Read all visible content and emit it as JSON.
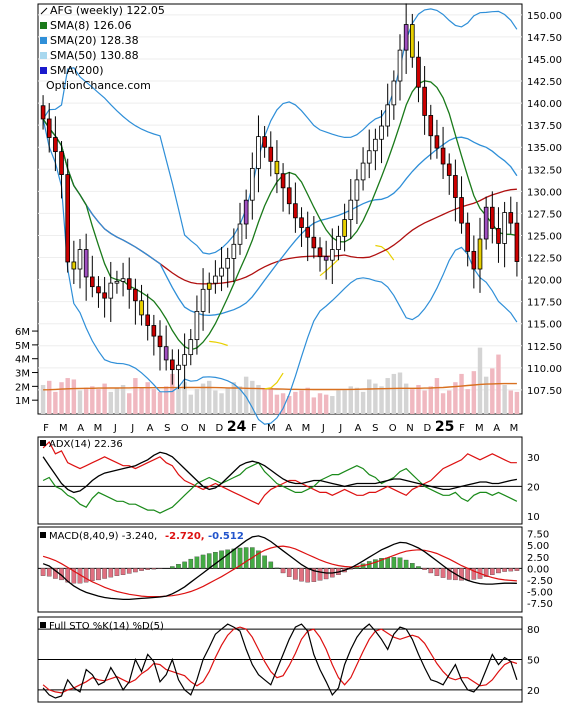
{
  "chart_data": {
    "type": "stock-chart",
    "price_panel": {
      "legend": [
        {
          "label": "AFG (weekly) 122.05",
          "color": "#000000",
          "marker": "line-thin"
        },
        {
          "label": "SMA(8) 126.06",
          "color": "#1a7a1a",
          "marker": "box"
        },
        {
          "label": "SMA(20) 128.38",
          "color": "#2f8fd8",
          "marker": "box"
        },
        {
          "label": "SMA(50) 130.88",
          "color": "#a8d8ef",
          "marker": "box"
        },
        {
          "label": "SMA(200)",
          "color": "#1a1acc",
          "marker": "box"
        }
      ],
      "watermark": "OptionChance.com",
      "y_ticks": [
        "150.00",
        "147.50",
        "145.00",
        "142.50",
        "140.00",
        "137.50",
        "135.00",
        "132.50",
        "130.00",
        "127.50",
        "125.00",
        "122.50",
        "120.00",
        "117.50",
        "115.00",
        "112.50",
        "110.00",
        "107.50"
      ],
      "y_range": [
        105.0,
        151.0
      ],
      "colors": {
        "up_candle": "#ffffff",
        "down_candle": "#cc0000",
        "inside_candle": "#e8d000",
        "purple_candle": "#a050c0",
        "sma8": "#1a7a1a",
        "sma20": "#2f8fd8",
        "sma50_line": "#b01010",
        "bollinger": "#2f8fd8",
        "yellow_band": "#e8d000"
      },
      "closes": [
        138.2,
        136.1,
        134.5,
        131.9,
        122.0,
        121.2,
        123.4,
        120.3,
        119.2,
        118.5,
        117.9,
        119.6,
        119.8,
        120.1,
        118.9,
        117.6,
        116.0,
        114.8,
        113.6,
        112.4,
        110.9,
        109.8,
        110.3,
        111.5,
        113.2,
        116.4,
        118.9,
        119.6,
        120.4,
        121.3,
        122.4,
        124.0,
        126.3,
        129.0,
        132.6,
        136.2,
        135.0,
        133.4,
        132.0,
        130.4,
        128.6,
        127.0,
        125.9,
        124.8,
        123.6,
        122.6,
        122.2,
        123.4,
        124.9,
        126.8,
        129.0,
        131.3,
        133.2,
        134.6,
        135.9,
        137.4,
        139.8,
        142.5,
        146.0,
        148.9,
        145.2,
        141.8,
        138.6,
        136.3,
        134.9,
        133.1,
        131.8,
        129.3,
        126.4,
        123.2,
        121.2,
        124.6,
        128.2,
        125.8,
        124.1,
        127.6,
        126.4,
        122.05
      ]
    },
    "volume_panel": {
      "y_ticks": [
        "6M",
        "5M",
        "4M",
        "3M",
        "2M",
        "1M"
      ],
      "y_range": [
        0,
        6.8
      ],
      "colors": {
        "up_bar": "#d4d4d4",
        "down_bar": "#f0b8c0",
        "average": "#d87020"
      },
      "volumes_millions": [
        2.1,
        2.4,
        1.6,
        2.3,
        2.6,
        2.5,
        1.7,
        1.9,
        2.0,
        1.8,
        2.2,
        1.6,
        1.9,
        2.1,
        1.5,
        2.6,
        1.9,
        2.3,
        1.8,
        1.6,
        2.0,
        2.9,
        1.9,
        2.3,
        1.4,
        1.8,
        2.2,
        2.4,
        1.7,
        1.5,
        1.9,
        2.3,
        2.0,
        2.7,
        2.4,
        2.1,
        1.8,
        1.9,
        1.4,
        1.5,
        1.3,
        1.6,
        1.7,
        1.9,
        1.2,
        1.5,
        1.4,
        1.3,
        1.7,
        1.8,
        2.0,
        1.9,
        1.6,
        2.5,
        2.2,
        2.0,
        2.6,
        2.9,
        3.0,
        2.2,
        1.8,
        2.1,
        1.7,
        2.0,
        2.6,
        1.5,
        1.7,
        2.3,
        2.9,
        1.8,
        3.1,
        4.8,
        2.7,
        3.3,
        4.3,
        2.1,
        1.7,
        1.6
      ],
      "average_millions": [
        1.75,
        1.76,
        1.78,
        1.8,
        1.82,
        1.84,
        1.85,
        1.86,
        1.86,
        1.87,
        1.87,
        1.88,
        1.88,
        1.89,
        1.89,
        1.9,
        1.9,
        1.9,
        1.9,
        1.9,
        1.9,
        1.91,
        1.91,
        1.92,
        1.92,
        1.92,
        1.92,
        1.92,
        1.91,
        1.9,
        1.89,
        1.88,
        1.87,
        1.86,
        1.85,
        1.84,
        1.83,
        1.82,
        1.81,
        1.8,
        1.79,
        1.79,
        1.78,
        1.78,
        1.77,
        1.77,
        1.77,
        1.77,
        1.77,
        1.78,
        1.78,
        1.79,
        1.8,
        1.81,
        1.82,
        1.83,
        1.84,
        1.85,
        1.86,
        1.86,
        1.86,
        1.86,
        1.87,
        1.88,
        1.9,
        1.92,
        1.95,
        1.98,
        2.02,
        2.06,
        2.1,
        2.14,
        2.16,
        2.18,
        2.19,
        2.2,
        2.2,
        2.2
      ]
    },
    "x_labels": [
      {
        "text": "F",
        "bold": false
      },
      {
        "text": "M",
        "bold": false
      },
      {
        "text": "A",
        "bold": false
      },
      {
        "text": "M",
        "bold": false
      },
      {
        "text": "J",
        "bold": false
      },
      {
        "text": "J",
        "bold": false
      },
      {
        "text": "A",
        "bold": false
      },
      {
        "text": "S",
        "bold": false
      },
      {
        "text": "O",
        "bold": false
      },
      {
        "text": "N",
        "bold": false
      },
      {
        "text": "D",
        "bold": false
      },
      {
        "text": "24",
        "bold": true
      },
      {
        "text": "F",
        "bold": false
      },
      {
        "text": "M",
        "bold": false
      },
      {
        "text": "A",
        "bold": false
      },
      {
        "text": "M",
        "bold": false
      },
      {
        "text": "J",
        "bold": false
      },
      {
        "text": "J",
        "bold": false
      },
      {
        "text": "A",
        "bold": false
      },
      {
        "text": "S",
        "bold": false
      },
      {
        "text": "O",
        "bold": false
      },
      {
        "text": "N",
        "bold": false
      },
      {
        "text": "D",
        "bold": false
      },
      {
        "text": "25",
        "bold": true
      },
      {
        "text": "F",
        "bold": false
      },
      {
        "text": "M",
        "bold": false
      },
      {
        "text": "A",
        "bold": false
      },
      {
        "text": "M",
        "bold": false
      }
    ],
    "adx_panel": {
      "label": "ADX(14) 22.36",
      "y_ticks": [
        "30",
        "20",
        "10"
      ],
      "y_range": [
        8,
        36
      ],
      "colors": {
        "adx": "#000000",
        "plus_di": "#1a8a1a",
        "minus_di": "#dd1111"
      },
      "adx": [
        30,
        27,
        24,
        21,
        19,
        18,
        18.5,
        20,
        22,
        23.5,
        24.5,
        25,
        25.5,
        26,
        26.5,
        27,
        28,
        29,
        30.5,
        31.5,
        31,
        30,
        28,
        26,
        24,
        22,
        20,
        19,
        19.5,
        21,
        23,
        25,
        27,
        28,
        28.5,
        28,
        27,
        25.5,
        24,
        22.5,
        21.5,
        21,
        21,
        21.5,
        22,
        22,
        21.5,
        21,
        20.5,
        20,
        20.5,
        21,
        21,
        21,
        21,
        21.5,
        22,
        22.5,
        22.5,
        22,
        21.5,
        21,
        20.5,
        20,
        19.5,
        19,
        19,
        19.5,
        20,
        20.5,
        21,
        21.5,
        21.5,
        21,
        21,
        21.5,
        22,
        22.36
      ],
      "plus_di": [
        22,
        23,
        20,
        19,
        17,
        16,
        14,
        13,
        16,
        18,
        17,
        16,
        15,
        15,
        14,
        14,
        13,
        12,
        12,
        11,
        12,
        13,
        15,
        17,
        19,
        21,
        22,
        23,
        22,
        21,
        22,
        23,
        24,
        26,
        27,
        28,
        25,
        23,
        21,
        20,
        19,
        18,
        18,
        19,
        20,
        22,
        23,
        24,
        24,
        25,
        26,
        27,
        26,
        24,
        23,
        21,
        22,
        23,
        25,
        26,
        24,
        22,
        20,
        19,
        18,
        17,
        17,
        18,
        16,
        15,
        17,
        18,
        18,
        17,
        18,
        17,
        16,
        15
      ],
      "minus_di": [
        33,
        35,
        31,
        32,
        28,
        27,
        26,
        27,
        28,
        29,
        30,
        29,
        28,
        27,
        27,
        26,
        27,
        28,
        29,
        30,
        28,
        27,
        24,
        22,
        21,
        20,
        19,
        20,
        21,
        20,
        19,
        18,
        17,
        16,
        15,
        14,
        17,
        19,
        20,
        21,
        22,
        22,
        21,
        20,
        19,
        18,
        18,
        17,
        18,
        19,
        18,
        17,
        17,
        18,
        18,
        19,
        20,
        19,
        18,
        17,
        19,
        20,
        21,
        22,
        24,
        26,
        27,
        28,
        29,
        31,
        30,
        29,
        30,
        31,
        30,
        29,
        28,
        28
      ]
    },
    "macd_panel": {
      "label": "MACD(8,40,9) -3.240,",
      "signal_label": "-2.720,",
      "hist_label": "-0.512",
      "y_ticks": [
        "7.50",
        "5.00",
        "2.50",
        "0.00",
        "-2.50",
        "-5.00",
        "-7.50"
      ],
      "y_range": [
        -9.0,
        8.5
      ],
      "colors": {
        "macd": "#000000",
        "signal": "#dd1111",
        "hist_pos": "#44aa44",
        "hist_neg": "#e07080",
        "hist_red_label": "#dd1111",
        "hist_blue_label": "#2255cc"
      },
      "macd": [
        1.0,
        0.5,
        -0.5,
        -1.5,
        -2.8,
        -3.8,
        -4.6,
        -5.2,
        -5.6,
        -6.0,
        -6.3,
        -6.5,
        -6.6,
        -6.7,
        -6.7,
        -6.6,
        -6.5,
        -6.4,
        -6.3,
        -6.2,
        -6.0,
        -5.5,
        -4.8,
        -4.0,
        -3.0,
        -2.0,
        -1.0,
        0.0,
        1.0,
        2.0,
        3.0,
        4.0,
        5.0,
        6.0,
        6.8,
        7.0,
        6.6,
        5.8,
        4.8,
        3.8,
        2.8,
        1.8,
        0.8,
        0.0,
        -0.5,
        -0.8,
        -1.0,
        -1.0,
        -0.8,
        -0.4,
        0.1,
        0.8,
        1.6,
        2.4,
        3.2,
        4.0,
        4.6,
        5.2,
        5.6,
        5.5,
        5.0,
        4.4,
        3.6,
        2.6,
        1.6,
        0.6,
        -0.4,
        -1.2,
        -2.0,
        -2.6,
        -3.0,
        -3.3,
        -3.4,
        -3.4,
        -3.3,
        -3.2,
        -3.2,
        -3.24
      ],
      "signal": [
        2.6,
        2.2,
        1.7,
        1.0,
        0.2,
        -0.6,
        -1.4,
        -2.2,
        -2.9,
        -3.5,
        -4.1,
        -4.6,
        -5.0,
        -5.3,
        -5.6,
        -5.8,
        -6.0,
        -6.1,
        -6.1,
        -6.1,
        -6.0,
        -5.9,
        -5.7,
        -5.4,
        -5.0,
        -4.5,
        -3.9,
        -3.2,
        -2.5,
        -1.8,
        -1.0,
        -0.2,
        0.6,
        1.5,
        2.3,
        3.2,
        3.9,
        4.4,
        4.7,
        4.8,
        4.6,
        4.2,
        3.6,
        3.0,
        2.4,
        1.8,
        1.3,
        0.9,
        0.6,
        0.4,
        0.3,
        0.4,
        0.6,
        0.9,
        1.3,
        1.8,
        2.3,
        2.8,
        3.3,
        3.7,
        3.9,
        4.0,
        3.9,
        3.6,
        3.2,
        2.6,
        2.0,
        1.3,
        0.6,
        0.0,
        -0.6,
        -1.1,
        -1.6,
        -2.0,
        -2.3,
        -2.5,
        -2.6,
        -2.72
      ],
      "hist": [
        -1.6,
        -1.7,
        -2.2,
        -2.5,
        -3.0,
        -3.2,
        -3.2,
        -3.0,
        -2.7,
        -2.5,
        -2.2,
        -1.9,
        -1.6,
        -1.4,
        -1.1,
        -0.8,
        -0.5,
        -0.3,
        -0.2,
        -0.1,
        0.0,
        0.4,
        0.9,
        1.4,
        2.0,
        2.5,
        2.9,
        3.2,
        3.5,
        3.8,
        4.0,
        4.2,
        4.4,
        4.5,
        4.5,
        3.8,
        2.7,
        1.4,
        0.1,
        -1.0,
        -1.8,
        -2.4,
        -2.8,
        -3.0,
        -2.9,
        -2.6,
        -2.3,
        -1.9,
        -1.4,
        -0.8,
        -0.2,
        0.4,
        1.0,
        1.5,
        1.9,
        2.2,
        2.3,
        2.4,
        2.3,
        1.8,
        1.1,
        0.4,
        -0.3,
        -1.0,
        -1.6,
        -2.0,
        -2.4,
        -2.5,
        -2.6,
        -2.6,
        -2.4,
        -2.2,
        -1.8,
        -1.4,
        -1.0,
        -0.7,
        -0.6,
        -0.512
      ]
    },
    "sto_panel": {
      "label": "Full STO %K(14) %D(5)",
      "y_ticks": [
        "80",
        "50",
        "20"
      ],
      "y_range": [
        10,
        90
      ],
      "colors": {
        "k": "#000000",
        "d": "#dd1111"
      },
      "k": [
        22,
        15,
        12,
        14,
        30,
        22,
        18,
        40,
        35,
        25,
        28,
        42,
        32,
        20,
        28,
        50,
        38,
        55,
        48,
        28,
        35,
        50,
        30,
        20,
        15,
        30,
        50,
        62,
        75,
        80,
        85,
        82,
        78,
        60,
        45,
        35,
        30,
        25,
        40,
        55,
        70,
        82,
        85,
        78,
        55,
        40,
        28,
        15,
        22,
        45,
        60,
        72,
        80,
        85,
        78,
        70,
        60,
        75,
        82,
        80,
        70,
        55,
        42,
        30,
        28,
        25,
        35,
        45,
        30,
        20,
        18,
        25,
        40,
        55,
        45,
        52,
        48,
        30
      ],
      "d": [
        25,
        20,
        18,
        17,
        20,
        22,
        25,
        28,
        32,
        30,
        29,
        31,
        33,
        30,
        27,
        30,
        36,
        40,
        46,
        45,
        40,
        38,
        36,
        34,
        28,
        24,
        28,
        38,
        52,
        64,
        74,
        80,
        82,
        80,
        72,
        60,
        48,
        38,
        32,
        34,
        44,
        56,
        70,
        78,
        80,
        72,
        60,
        45,
        32,
        25,
        32,
        45,
        58,
        70,
        78,
        80,
        76,
        72,
        70,
        72,
        74,
        72,
        66,
        56,
        46,
        38,
        32,
        30,
        32,
        32,
        28,
        24,
        25,
        30,
        38,
        45,
        48,
        46
      ]
    }
  }
}
